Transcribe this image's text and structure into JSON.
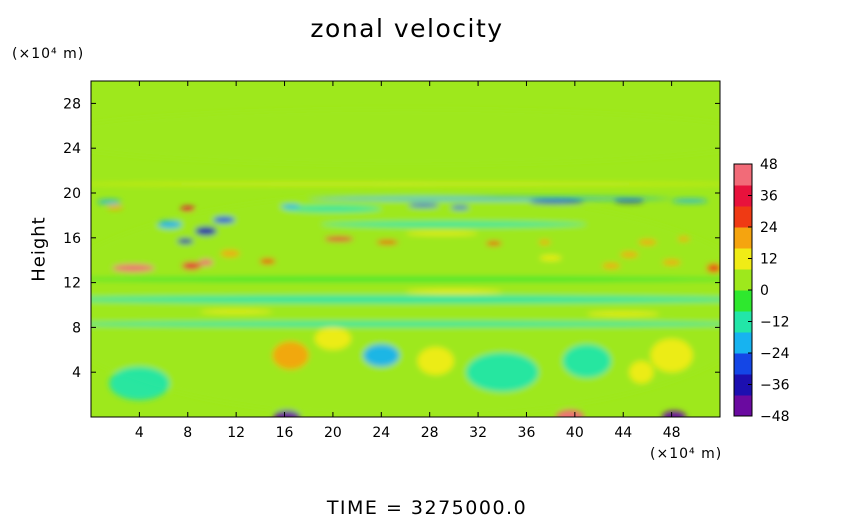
{
  "chart_data": {
    "type": "heatmap",
    "title": "zonal velocity",
    "ylabel": "Height",
    "y_unit": "(×10⁴ m)",
    "x_unit": "(×10⁴ m)",
    "footer": "TIME = 3275000.0",
    "xlim": [
      0,
      52
    ],
    "ylim": [
      0,
      30
    ],
    "x_ticks": [
      4,
      8,
      12,
      16,
      20,
      24,
      28,
      32,
      36,
      40,
      44,
      48
    ],
    "y_ticks": [
      4,
      8,
      12,
      16,
      20,
      24,
      28
    ],
    "colorbar": {
      "range": [
        -48,
        48
      ],
      "ticks": [
        48,
        36,
        24,
        12,
        0,
        -12,
        -24,
        -36,
        -48
      ],
      "colors": [
        "#6a0aa0",
        "#1c0fb0",
        "#1446e6",
        "#17b3f0",
        "#22e6a8",
        "#2ee82e",
        "#9ee81c",
        "#f0ec16",
        "#f5a40f",
        "#ef3a14",
        "#e8123c",
        "#f26b78"
      ]
    },
    "features": [
      {
        "label": "base-background",
        "x": 26,
        "y": 10,
        "sx": 60,
        "sy": 20,
        "value": 2
      },
      {
        "label": "upper-calm",
        "x": 26,
        "y": 25,
        "sx": 60,
        "sy": 5,
        "value": 0
      },
      {
        "label": "lower-cyan-1",
        "x": 4,
        "y": 3,
        "sx": 5,
        "sy": 3,
        "value": -14
      },
      {
        "label": "lower-cyan-2",
        "x": 24,
        "y": 5.5,
        "sx": 3,
        "sy": 2,
        "value": -22
      },
      {
        "label": "lower-cyan-3",
        "x": 34,
        "y": 4,
        "sx": 6,
        "sy": 3.5,
        "value": -12
      },
      {
        "label": "lower-cyan-4",
        "x": 41,
        "y": 5,
        "sx": 4,
        "sy": 3,
        "value": -12
      },
      {
        "label": "lower-yellow-1",
        "x": 16.5,
        "y": 5.5,
        "sx": 3,
        "sy": 2.5,
        "value": 16
      },
      {
        "label": "lower-yellow-2",
        "x": 20,
        "y": 7,
        "sx": 3,
        "sy": 2,
        "value": 10
      },
      {
        "label": "lower-yellow-3",
        "x": 48,
        "y": 5.5,
        "sx": 3.5,
        "sy": 3,
        "value": 15
      },
      {
        "label": "lower-yellow-4",
        "x": 45.5,
        "y": 4,
        "sx": 2,
        "sy": 2,
        "value": 14
      },
      {
        "label": "lower-yellow-5",
        "x": 28.5,
        "y": 5,
        "sx": 3,
        "sy": 2.5,
        "value": 8
      },
      {
        "label": "bottom-blue-left",
        "x": 16.2,
        "y": 0,
        "sx": 2.2,
        "sy": 1.2,
        "value": -48
      },
      {
        "label": "bottom-red",
        "x": 39.6,
        "y": 0,
        "sx": 2.3,
        "sy": 1.3,
        "value": 44
      },
      {
        "label": "bottom-blue-right",
        "x": 48.2,
        "y": 0,
        "sx": 2.0,
        "sy": 1.1,
        "value": -42
      },
      {
        "label": "blue-band-8",
        "x": 26,
        "y": 8.3,
        "sx": 60,
        "sy": 0.5,
        "value": -10
      },
      {
        "label": "cyan-band-10",
        "x": 26,
        "y": 10.5,
        "sx": 60,
        "sy": 0.7,
        "value": -12
      },
      {
        "label": "yellow-band-9",
        "x": 12,
        "y": 9.4,
        "sx": 6,
        "sy": 0.35,
        "value": 12
      },
      {
        "label": "yellow-band-9b",
        "x": 44,
        "y": 9.2,
        "sx": 6,
        "sy": 0.4,
        "value": 12
      },
      {
        "label": "yellow-band-11",
        "x": 30,
        "y": 11.2,
        "sx": 8,
        "sy": 0.4,
        "value": 10
      },
      {
        "label": "cyan-band-12",
        "x": 26,
        "y": 12.3,
        "sx": 60,
        "sy": 0.5,
        "value": -8
      },
      {
        "label": "red-jet-left",
        "x": 3.5,
        "y": 13.3,
        "sx": 3.5,
        "sy": 0.7,
        "value": 40
      },
      {
        "label": "red-jet-8",
        "x": 8.3,
        "y": 13.5,
        "sx": 1.6,
        "sy": 0.7,
        "value": 38
      },
      {
        "label": "red-jet-9",
        "x": 9.5,
        "y": 13.8,
        "sx": 1.2,
        "sy": 0.6,
        "value": 42
      },
      {
        "label": "red-jet-14",
        "x": 14.6,
        "y": 13.9,
        "sx": 1.3,
        "sy": 0.5,
        "value": 30
      },
      {
        "label": "orange-15",
        "x": 11.5,
        "y": 14.6,
        "sx": 1.6,
        "sy": 0.6,
        "value": 22
      },
      {
        "label": "yellow-edge-right",
        "x": 51.5,
        "y": 13.3,
        "sx": 1.2,
        "sy": 0.8,
        "value": 28
      },
      {
        "label": "yellow-edge-47",
        "x": 48,
        "y": 13.8,
        "sx": 1.5,
        "sy": 0.5,
        "value": 18
      },
      {
        "label": "yellow-diag-1",
        "x": 43,
        "y": 13.5,
        "sx": 1.5,
        "sy": 0.5,
        "value": 16
      },
      {
        "label": "yellow-diag-2",
        "x": 44.5,
        "y": 14.5,
        "sx": 1.5,
        "sy": 0.5,
        "value": 16
      },
      {
        "label": "yellow-diag-3",
        "x": 46,
        "y": 15.6,
        "sx": 1.5,
        "sy": 0.5,
        "value": 16
      },
      {
        "label": "yellow-diag-4",
        "x": 38,
        "y": 14.2,
        "sx": 1.8,
        "sy": 0.5,
        "value": 14
      },
      {
        "label": "red-jet-18",
        "x": 20.5,
        "y": 15.9,
        "sx": 2.4,
        "sy": 0.45,
        "value": 32
      },
      {
        "label": "red-jet-23",
        "x": 24.5,
        "y": 15.6,
        "sx": 1.8,
        "sy": 0.4,
        "value": 28
      },
      {
        "label": "orange-33",
        "x": 33.3,
        "y": 15.5,
        "sx": 1.3,
        "sy": 0.4,
        "value": 24
      },
      {
        "label": "orange-37",
        "x": 37.5,
        "y": 15.6,
        "sx": 1,
        "sy": 0.4,
        "value": 22
      },
      {
        "label": "yellow-band-16",
        "x": 29,
        "y": 16.4,
        "sx": 6,
        "sy": 0.35,
        "value": 14
      },
      {
        "label": "orange-49",
        "x": 49,
        "y": 15.9,
        "sx": 1,
        "sy": 0.4,
        "value": 18
      },
      {
        "label": "cyan-band-17",
        "x": 30,
        "y": 17.2,
        "sx": 22,
        "sy": 0.5,
        "value": -16
      },
      {
        "label": "cyan-band-17b",
        "x": 20,
        "y": 18.6,
        "sx": 8,
        "sy": 0.6,
        "value": -16
      },
      {
        "label": "blue-pool-9",
        "x": 9.5,
        "y": 16.6,
        "sx": 1.8,
        "sy": 0.8,
        "value": -40
      },
      {
        "label": "blue-pool-11",
        "x": 11,
        "y": 17.6,
        "sx": 1.8,
        "sy": 0.6,
        "value": -32
      },
      {
        "label": "blue-pool-8",
        "x": 7.8,
        "y": 15.7,
        "sx": 1.3,
        "sy": 0.5,
        "value": -34
      },
      {
        "label": "cyan-pool-7",
        "x": 6.5,
        "y": 17.2,
        "sx": 2,
        "sy": 0.7,
        "value": -20
      },
      {
        "label": "blue-pool-16",
        "x": 16.5,
        "y": 18.8,
        "sx": 1.6,
        "sy": 0.4,
        "value": -24
      },
      {
        "label": "red-18-left",
        "x": 8,
        "y": 18.6,
        "sx": 1.2,
        "sy": 0.45,
        "value": 38
      },
      {
        "label": "yellow-18-left",
        "x": 2,
        "y": 18.7,
        "sx": 1.3,
        "sy": 0.4,
        "value": 22
      },
      {
        "label": "cyan-19-left",
        "x": 1.5,
        "y": 19.2,
        "sx": 2,
        "sy": 0.4,
        "value": -18
      },
      {
        "label": "blue-jet-27",
        "x": 27.5,
        "y": 18.9,
        "sx": 2.5,
        "sy": 0.35,
        "value": -30
      },
      {
        "label": "blue-jet-30",
        "x": 30.5,
        "y": 18.7,
        "sx": 1.5,
        "sy": 0.35,
        "value": -30
      },
      {
        "label": "blue-jet-38",
        "x": 38.5,
        "y": 19.2,
        "sx": 4.5,
        "sy": 0.35,
        "value": -36
      },
      {
        "label": "blue-jet-44",
        "x": 44.5,
        "y": 19.3,
        "sx": 2.5,
        "sy": 0.35,
        "value": -34
      },
      {
        "label": "cyan-jet-50",
        "x": 49.5,
        "y": 19.3,
        "sx": 3,
        "sy": 0.35,
        "value": -22
      },
      {
        "label": "cyan-band-19",
        "x": 33,
        "y": 19.5,
        "sx": 30,
        "sy": 0.3,
        "value": -20
      },
      {
        "label": "yellow-band-21",
        "x": 26,
        "y": 20.8,
        "sx": 60,
        "sy": 0.22,
        "value": 8
      }
    ]
  }
}
